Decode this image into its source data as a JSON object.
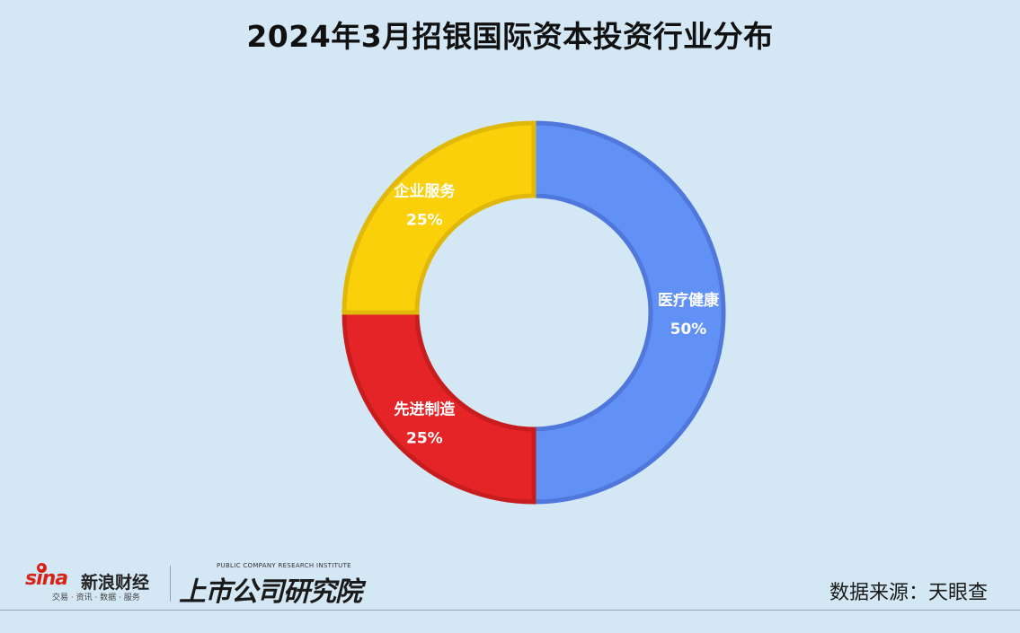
{
  "title": "2024年3月招银国际资本投资行业分布",
  "chart_data": {
    "type": "pie",
    "title": "2024年3月招银国际资本投资行业分布",
    "slices": [
      {
        "label": "医疗健康",
        "value": 50,
        "percent_label": "50%",
        "color": "#6191f5",
        "border": "#5078dc"
      },
      {
        "label": "先进制造",
        "value": 25,
        "percent_label": "25%",
        "color": "#e42427",
        "border": "#c81d1f"
      },
      {
        "label": "企业服务",
        "value": 25,
        "percent_label": "25%",
        "color": "#f9d00a",
        "border": "#e0b80a"
      }
    ],
    "start_angle_deg": 0,
    "direction": "clockwise",
    "donut": true,
    "legend": "none"
  },
  "footer": {
    "sina_logo_text": "sina",
    "sina_brand": "新浪财经",
    "sina_tagline": "交易 · 资讯 · 数据 · 服务",
    "institute_en": "PUBLIC COMPANY RESEARCH INSTITUTE",
    "institute_cn": "上市公司研究院",
    "source": "数据来源：天眼查"
  }
}
